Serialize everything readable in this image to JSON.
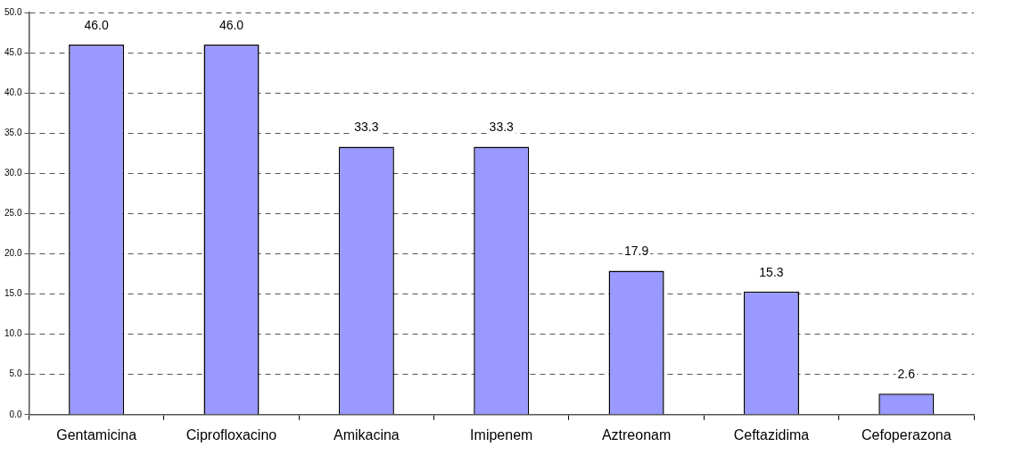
{
  "chart_data": {
    "type": "bar",
    "categories": [
      "Gentamicina",
      "Ciprofloxacino",
      "Amikacina",
      "Imipenem",
      "Aztreonam",
      "Ceftazidima",
      "Cefoperazona"
    ],
    "values": [
      46.0,
      46.0,
      33.3,
      33.3,
      17.9,
      15.3,
      2.6
    ],
    "value_labels": [
      "46.0",
      "46.0",
      "33.3",
      "33.3",
      "17.9",
      "15.3",
      "2.6"
    ],
    "color": "#9999ff",
    "ylim": [
      0,
      50
    ],
    "yticks": [
      {
        "value": 0,
        "label": "0.0"
      },
      {
        "value": 5,
        "label": "5.0"
      },
      {
        "value": 10,
        "label": "10.0"
      },
      {
        "value": 15,
        "label": "15.0"
      },
      {
        "value": 20,
        "label": "20.0"
      },
      {
        "value": 25,
        "label": "25.0"
      },
      {
        "value": 30,
        "label": "30.0"
      },
      {
        "value": 35,
        "label": "35.0"
      },
      {
        "value": 40,
        "label": "40.0"
      },
      {
        "value": 45,
        "label": "45.0"
      },
      {
        "value": 50,
        "label": "50.0"
      }
    ],
    "grid": "y",
    "line_style": "dashed",
    "legend": false
  }
}
